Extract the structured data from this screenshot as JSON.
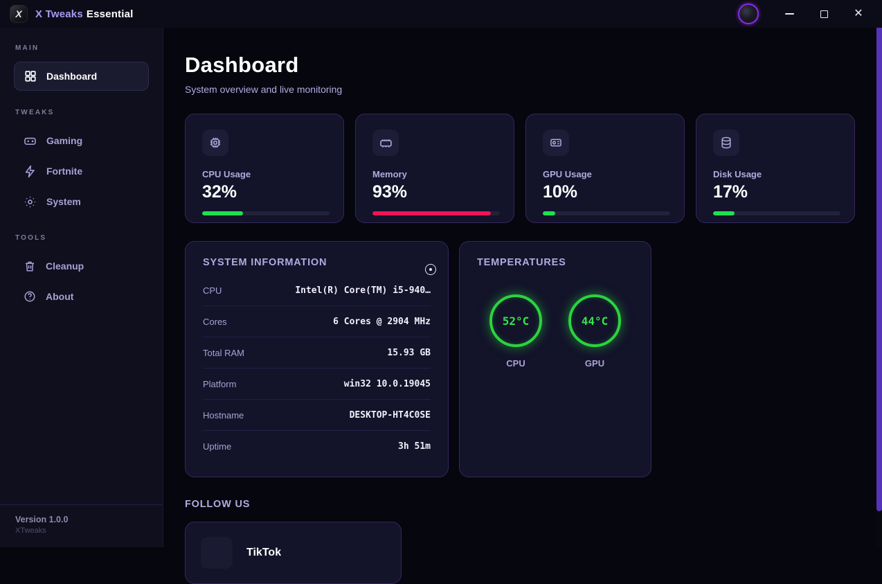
{
  "titlebar": {
    "logo_letter": "X",
    "brand": "X Tweaks",
    "edition": "Essential"
  },
  "sidebar": {
    "sections": [
      {
        "label": "MAIN",
        "items": [
          {
            "label": "Dashboard",
            "icon": "grid-icon",
            "active": true
          }
        ]
      },
      {
        "label": "TWEAKS",
        "items": [
          {
            "label": "Gaming",
            "icon": "gamepad-icon"
          },
          {
            "label": "Fortnite",
            "icon": "lightning-icon"
          },
          {
            "label": "System",
            "icon": "gear-dots-icon"
          }
        ]
      },
      {
        "label": "TOOLS",
        "items": [
          {
            "label": "Cleanup",
            "icon": "trash-icon"
          },
          {
            "label": "About",
            "icon": "help-circle-icon"
          }
        ]
      }
    ],
    "footer": {
      "version": "Version 1.0.0",
      "brand": "XTweaks"
    }
  },
  "main": {
    "title": "Dashboard",
    "subtitle": "System overview and live monitoring",
    "stats": [
      {
        "label": "CPU Usage",
        "value": "32%",
        "percent": 32,
        "color": "#1fe14f",
        "icon": "cpu-icon"
      },
      {
        "label": "Memory",
        "value": "93%",
        "percent": 93,
        "color": "#f11357",
        "icon": "memory-icon"
      },
      {
        "label": "GPU Usage",
        "value": "10%",
        "percent": 10,
        "color": "#1fe14f",
        "icon": "gpu-icon"
      },
      {
        "label": "Disk Usage",
        "value": "17%",
        "percent": 17,
        "color": "#1fe14f",
        "icon": "disk-icon"
      }
    ],
    "system_info": {
      "title": "SYSTEM INFORMATION",
      "rows": [
        {
          "label": "CPU",
          "value": "Intel(R) Core(TM) i5-940…"
        },
        {
          "label": "Cores",
          "value": "6 Cores @ 2904 MHz"
        },
        {
          "label": "Total RAM",
          "value": "15.93 GB"
        },
        {
          "label": "Platform",
          "value": "win32 10.0.19045"
        },
        {
          "label": "Hostname",
          "value": "DESKTOP-HT4C0SE"
        },
        {
          "label": "Uptime",
          "value": "3h 51m"
        }
      ]
    },
    "temperatures": {
      "title": "TEMPERATURES",
      "items": [
        {
          "label": "CPU",
          "value": "52°C"
        },
        {
          "label": "GPU",
          "value": "44°C"
        }
      ],
      "ring_color": "#2bd33f"
    },
    "follow": {
      "title": "FOLLOW US",
      "items": [
        {
          "label": "TikTok"
        }
      ]
    }
  }
}
